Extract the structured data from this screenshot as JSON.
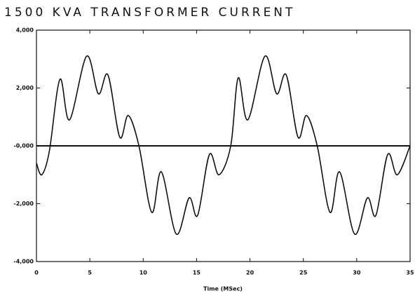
{
  "chart_data": {
    "type": "line",
    "title": "1500 KVA TRANSFORMER CURRENT",
    "x_label": "Time (MSec)",
    "x": [
      0,
      0.5,
      1.2,
      2.2,
      3.1,
      4.7,
      5.8,
      6.7,
      7.8,
      8.6,
      9.6,
      10.8,
      11.7,
      13.1,
      14.3,
      15.1,
      16.2,
      17.1,
      18.2,
      18.9,
      19.8,
      21.4,
      22.5,
      23.4,
      24.5,
      25.3,
      26.3,
      27.5,
      28.4,
      29.8,
      31.0,
      31.8,
      32.9,
      33.8,
      35
    ],
    "series": [
      {
        "color": "#111111",
        "values": [
          -600,
          -1000,
          -200,
          2300,
          900,
          3100,
          1800,
          2450,
          300,
          1050,
          0,
          -2300,
          -900,
          -3050,
          -1800,
          -2400,
          -300,
          -1000,
          0,
          2350,
          900,
          3100,
          1800,
          2450,
          300,
          1050,
          0,
          -2300,
          -900,
          -3050,
          -1800,
          -2400,
          -300,
          -1000,
          0
        ]
      }
    ],
    "xlim": [
      0,
      35
    ],
    "xticks": [
      0,
      5,
      10,
      15,
      20,
      25,
      30,
      35
    ],
    "ylim": [
      -4000,
      4000
    ],
    "yticks": [
      {
        "value": -4000,
        "label": "-4,000"
      },
      {
        "value": -2000,
        "label": "-2,000"
      },
      {
        "value": 0,
        "label": "-0,000"
      },
      {
        "value": 2000,
        "label": "2,000"
      },
      {
        "value": 4000,
        "label": "4,000"
      }
    ],
    "grid": false
  }
}
